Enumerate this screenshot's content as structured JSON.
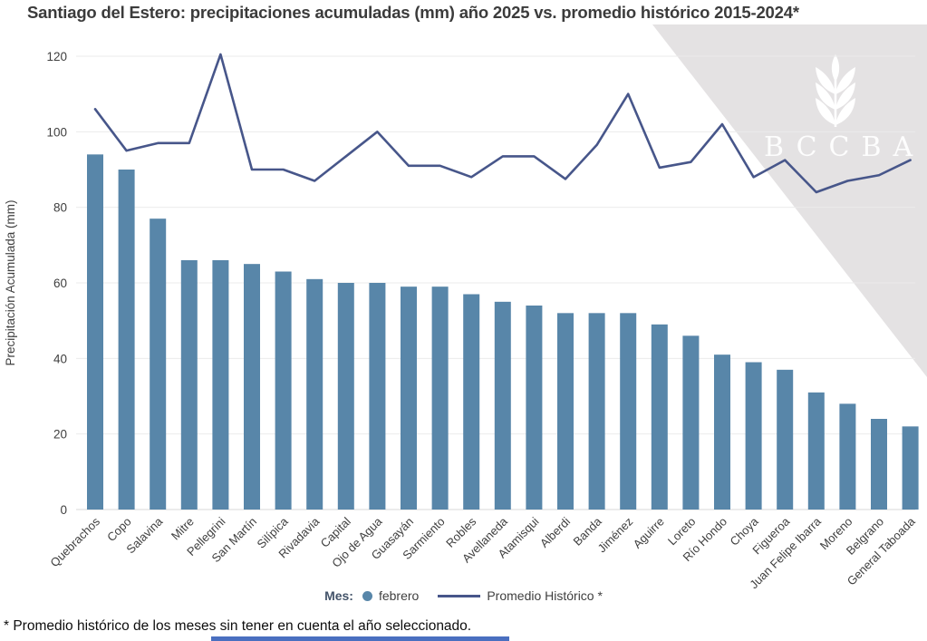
{
  "title": "Santiago del Estero: precipitaciones acumuladas (mm) año 2025 vs. promedio histórico 2015-2024*",
  "footnote": "* Promedio histórico de los meses sin tener en cuenta el año seleccionado.",
  "watermark": {
    "text": "BCCBA",
    "icon": "wheat-icon"
  },
  "legend": {
    "prefix": "Mes:",
    "bar_series_label": "febrero",
    "line_series_label": "Promedio Histórico *"
  },
  "colors": {
    "bar": "#5886a9",
    "line": "#47568a",
    "title_text": "#3b3b3b",
    "axis_text": "#3f3f3f",
    "gridline": "#ebebeb",
    "axis_line": "#d8d8d8",
    "watermark_bg": "#e4e2e3",
    "watermark_text": "#ffffff",
    "legend_prefix_text": "#44546a",
    "bottom_strip": "#4a6fc0"
  },
  "chart_data": {
    "type": "bar",
    "title": "Santiago del Estero: precipitaciones acumuladas (mm) año 2025 vs. promedio histórico 2015-2024*",
    "xlabel": "",
    "ylabel": "Precipitación Acumulada (mm)",
    "ylim": [
      0,
      120
    ],
    "yticks": [
      0,
      20,
      40,
      60,
      80,
      100,
      120
    ],
    "grid": true,
    "legend_position": "bottom",
    "categories": [
      "Quebrachos",
      "Copo",
      "Salavina",
      "Mitre",
      "Pellegrini",
      "San Martín",
      "Silípica",
      "Rivadavia",
      "Capital",
      "Ojo de Agua",
      "Guasayán",
      "Sarmiento",
      "Robles",
      "Avellaneda",
      "Atamisqui",
      "Alberdi",
      "Banda",
      "Jiménez",
      "Aguirre",
      "Loreto",
      "Río Hondo",
      "Choya",
      "Figueroa",
      "Juan Felipe Ibarra",
      "Moreno",
      "Belgrano",
      "General Taboada"
    ],
    "series": [
      {
        "name": "febrero",
        "type": "bar",
        "color": "#5886a9",
        "values": [
          94,
          90,
          77,
          66,
          66,
          65,
          63,
          61,
          60,
          60,
          59,
          59,
          57,
          55,
          54,
          52,
          52,
          52,
          49,
          46,
          41,
          39,
          37,
          31,
          28,
          24,
          22
        ]
      },
      {
        "name": "Promedio Histórico *",
        "type": "line",
        "color": "#47568a",
        "values": [
          106,
          95,
          97,
          97,
          120.5,
          90,
          90,
          87,
          93.5,
          100,
          91,
          91,
          88,
          93.5,
          93.5,
          87.5,
          96.5,
          110,
          90.5,
          92,
          102,
          88,
          92.5,
          84,
          87,
          88.5,
          92.5
        ]
      }
    ]
  }
}
